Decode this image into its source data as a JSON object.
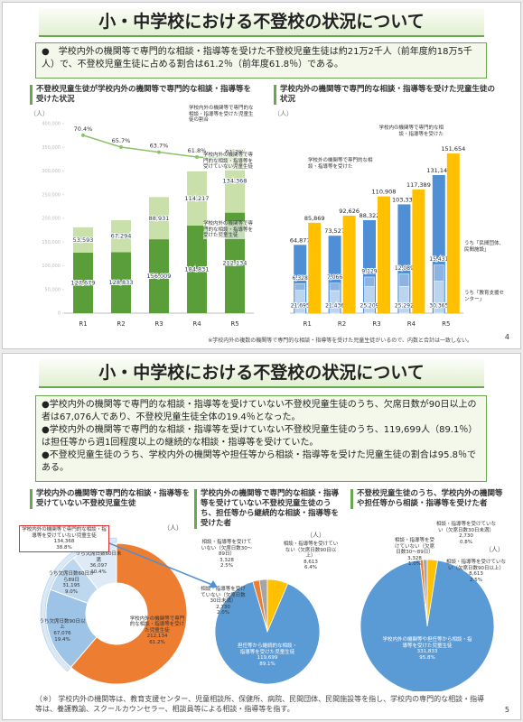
{
  "slides": [
    {
      "title": "小・中学校における不登校の状況について",
      "summary": "●　学校内外の機関等で専門的な相談・指導等を受けた不登校児童生徒は約21万2千人（前年度約18万5千人）で、不登校児童生徒に占める割合は61.2％（前年度61.8％）である。",
      "note": "※学校内外の複数の機関等で専門的な相談・指導等を受けた児童生徒がいるので、内数と合計は一致しない。",
      "page": 4
    },
    {
      "title": "小・中学校における不登校の状況について",
      "bullets": [
        "●学校内外の機関等で専門的な相談・指導等を受けていない不登校児童生徒のうち、欠席日数が90日以上の者は67,076人であり、不登校児童生徒全体の19.4％となった。",
        "●学校内外の機関等で専門的な相談・指導等を受けていない不登校児童生徒のうち、119,699人（89.1％）は担任等から週1回程度以上の継続的な相談・指導等を受けていた。",
        "●不登校児童生徒のうち、学校内外の機関等や担任等から相談・指導等を受けた児童生徒の割合は95.8％である。"
      ],
      "note": "（※） 学校内外の機関等は、教育支援センター、児童相談所、保健所、病院、民間団体、民間施設等を指し、学校内の専門的な相談・指導等は、養護教諭、スクールカウンセラー、相談員等による相談・指導等を指す。",
      "page": 5
    }
  ],
  "chart_data": [
    {
      "type": "bar",
      "stacked": true,
      "title": "不登校児童生徒が学校内外の機関等で専門的な相談・指導等を受けた状況",
      "unit": "（人）",
      "categories": [
        "R1",
        "R2",
        "R3",
        "R4",
        "R5"
      ],
      "ylim": [
        0,
        400000
      ],
      "yticks": [
        0,
        {
          "value": 50000,
          "label": "50,000"
        },
        {
          "value": 100000,
          "label": "100,000"
        },
        {
          "value": 150000,
          "label": "150,000"
        },
        {
          "value": 200000,
          "label": "200,000"
        },
        {
          "value": 250000,
          "label": "250,000"
        },
        {
          "value": 300000,
          "label": "300,000"
        },
        {
          "value": 350000,
          "label": "350,000"
        },
        {
          "value": 400000,
          "label": "400,000"
        }
      ],
      "y2lim": [
        0,
        75
      ],
      "series": [
        {
          "name": "学校内外の機関等で専門的な相談・指導等を受けた児童生徒",
          "color": "#5a9e3a",
          "values": [
            127679,
            128833,
            156009,
            184831,
            212134
          ],
          "value_labels": [
            "127,679",
            "128,833",
            "156,009",
            "184,831",
            "212,134"
          ]
        },
        {
          "name": "学校内外の機関等で専門的な相談・指導等を受けていない児童生徒",
          "color": "#c9e0aa",
          "values": [
            53593,
            67294,
            88931,
            114217,
            134368
          ],
          "value_labels": [
            "53,593",
            "67,294",
            "88,931",
            "114,217",
            "134,368"
          ]
        },
        {
          "name": "学校内外の機関等で専門的な相談・指導等を受けた児童生徒の割合",
          "type": "line",
          "axis": "y2",
          "color": "#8cc26a",
          "values": [
            70.4,
            65.7,
            63.7,
            61.8,
            61.2
          ],
          "value_labels": [
            "70.4%",
            "65.7%",
            "63.7%",
            "61.8%",
            "61.2%"
          ]
        }
      ]
    },
    {
      "type": "bar",
      "title": "学校内外の機関等で専門的な相談・指導等を受けた児童生徒の状況",
      "unit": "（人）",
      "categories": [
        "R1",
        "R2",
        "R3",
        "R4",
        "R5"
      ],
      "ylim": [
        0,
        180000
      ],
      "series": [
        {
          "name": "学校外の機関等で専門的な相談・指導等を受けた",
          "color": "#4f8fd6",
          "values": [
            64877,
            73527,
            88322,
            103339,
            131141
          ],
          "value_labels": [
            "64,877",
            "73,527",
            "88,322",
            "103,339",
            "131,141"
          ],
          "parts": [
            {
              "name": "うち「教育支援センター」",
              "color": "#bcd5ef",
              "values": [
                21695,
                21436,
                25209,
                25292,
                30365
              ],
              "value_labels": [
                "21,695",
                "21,436",
                "25,209",
                "25,292",
                "30,365"
              ]
            },
            {
              "name": "うち「民間団体、民間施設」",
              "color": "#8db3e2",
              "values": [
                6328,
                7066,
                9129,
                12089,
                15431
              ],
              "value_labels": [
                "6,328",
                "7,066",
                "9,129",
                "12,089",
                "15,431"
              ]
            }
          ]
        },
        {
          "name": "学校内の機関等で専門的な相談・指導等を受けた",
          "color": "#ffc000",
          "values": [
            85869,
            92626,
            110908,
            117389,
            151654
          ],
          "value_labels": [
            "85,869",
            "92,626",
            "110,908",
            "117,389",
            "151,654"
          ]
        }
      ]
    },
    {
      "type": "donut",
      "title": "学校内外の機関等で専門的な相談・指導等を受けていない不登校児童生徒",
      "unit": "（人）",
      "categories": [
        "学校内外の機関等で専門的な相談・指導等を受けた児童生徒",
        "学校内外の機関等で専門的な相談・指導等を受けていない児童生徒"
      ],
      "values": [
        212134,
        134368
      ],
      "value_labels": [
        "212,134",
        "134,368"
      ],
      "shares": [
        61.2,
        38.8
      ],
      "share_labels": [
        "61.2%",
        "38.8%"
      ],
      "colors": [
        "#ed7d31",
        "#dbe8f6"
      ],
      "parts": {
        "categories": [
          "うち欠席日数90日以上",
          "うち欠席日数60日から89日",
          "うち欠席日数60日未満"
        ],
        "values": [
          67076,
          31195,
          36097
        ],
        "value_labels": [
          "67,076",
          "31,195",
          "36,097"
        ],
        "shares": [
          19.4,
          9.0,
          10.4
        ],
        "share_labels": [
          "19.4%",
          "9.0%",
          "10.4%"
        ],
        "colors": [
          "#9dc3e6",
          "#bdd7ee",
          "#deebf7"
        ]
      }
    },
    {
      "type": "pie",
      "title": "学校内外の機関等で専門的な相談・指導等を受けていない不登校児童生徒のうち、担任等から継続的な相談・指導等を受けた者",
      "unit": "（人）",
      "categories": [
        "相談・指導等を受けていない（欠席日数30日未満）",
        "相談・指導等を受けていない（欠席日数30～89日）",
        "相談・指導等を受けていない（欠席日数90日以上）",
        "担任等から継続的な相談・指導等を受けた児童生徒"
      ],
      "values": [
        2730,
        3328,
        8613,
        119699
      ],
      "value_labels": [
        "2,730",
        "3,328",
        "8,613",
        "119,699"
      ],
      "shares": [
        2.0,
        2.5,
        6.4,
        89.1
      ],
      "share_labels": [
        "2.0%",
        "2.5%",
        "6.4%",
        "89.1%"
      ],
      "colors": [
        "#ed7d31",
        "#a5a5a5",
        "#ffc000",
        "#5b9bd5"
      ]
    },
    {
      "type": "pie",
      "title": "不登校児童生徒のうち、学校内外の機関等や担任等から相談・指導等を受けた者",
      "unit": "（人）",
      "categories": [
        "相談・指導等を受けていない（欠席日数30日未満）",
        "相談・指導等を受けていない（欠席日数30～89日）",
        "相談・指導等を受けていない（欠席日数90日以上）",
        "学校内外の機関等や担任等から相談・指導等を受けた児童生徒"
      ],
      "values": [
        2730,
        3328,
        8613,
        331833
      ],
      "value_labels": [
        "2,730",
        "3,328",
        "8,613",
        "331,833"
      ],
      "shares": [
        0.8,
        1.0,
        2.5,
        95.8
      ],
      "share_labels": [
        "0.8%",
        "1.0%",
        "2.5%",
        "95.8%"
      ],
      "colors": [
        "#ed7d31",
        "#a5a5a5",
        "#ffc000",
        "#5b9bd5"
      ]
    }
  ]
}
